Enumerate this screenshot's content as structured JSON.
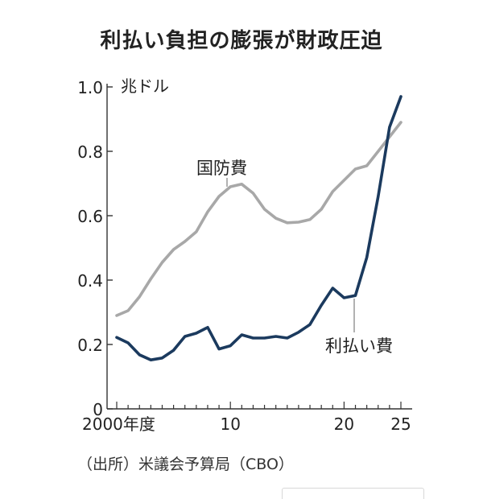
{
  "chart_data": {
    "type": "line",
    "title": "利払い負担の膨張が財政圧迫",
    "unit_label": "兆ドル",
    "ylim": [
      0,
      1.0
    ],
    "xlim": [
      2000,
      2025
    ],
    "y_ticks": [
      "0",
      "0.2",
      "0.4",
      "0.6",
      "0.8",
      "1.0"
    ],
    "x_ticks": [
      {
        "value": 2000,
        "label": "2000年度"
      },
      {
        "value": 2010,
        "label": "10"
      },
      {
        "value": 2020,
        "label": "20"
      },
      {
        "value": 2025,
        "label": "25"
      }
    ],
    "x": [
      2000,
      2001,
      2002,
      2003,
      2004,
      2005,
      2006,
      2007,
      2008,
      2009,
      2010,
      2011,
      2012,
      2013,
      2014,
      2015,
      2016,
      2017,
      2018,
      2019,
      2020,
      2021,
      2022,
      2023,
      2024,
      2025
    ],
    "series": [
      {
        "name": "国防費",
        "color": "#a8a8a8",
        "values": [
          0.29,
          0.305,
          0.348,
          0.404,
          0.455,
          0.495,
          0.52,
          0.55,
          0.612,
          0.66,
          0.69,
          0.698,
          0.67,
          0.62,
          0.592,
          0.578,
          0.58,
          0.588,
          0.62,
          0.675,
          0.71,
          0.745,
          0.755,
          0.8,
          0.845,
          0.89
        ]
      },
      {
        "name": "利払い費",
        "color": "#1b3a5e",
        "values": [
          0.222,
          0.205,
          0.168,
          0.152,
          0.158,
          0.182,
          0.225,
          0.235,
          0.253,
          0.186,
          0.196,
          0.23,
          0.22,
          0.22,
          0.225,
          0.22,
          0.238,
          0.262,
          0.322,
          0.375,
          0.345,
          0.352,
          0.47,
          0.66,
          0.875,
          0.97
        ]
      }
    ],
    "source": "（出所）米議会予算局（CBO）"
  }
}
